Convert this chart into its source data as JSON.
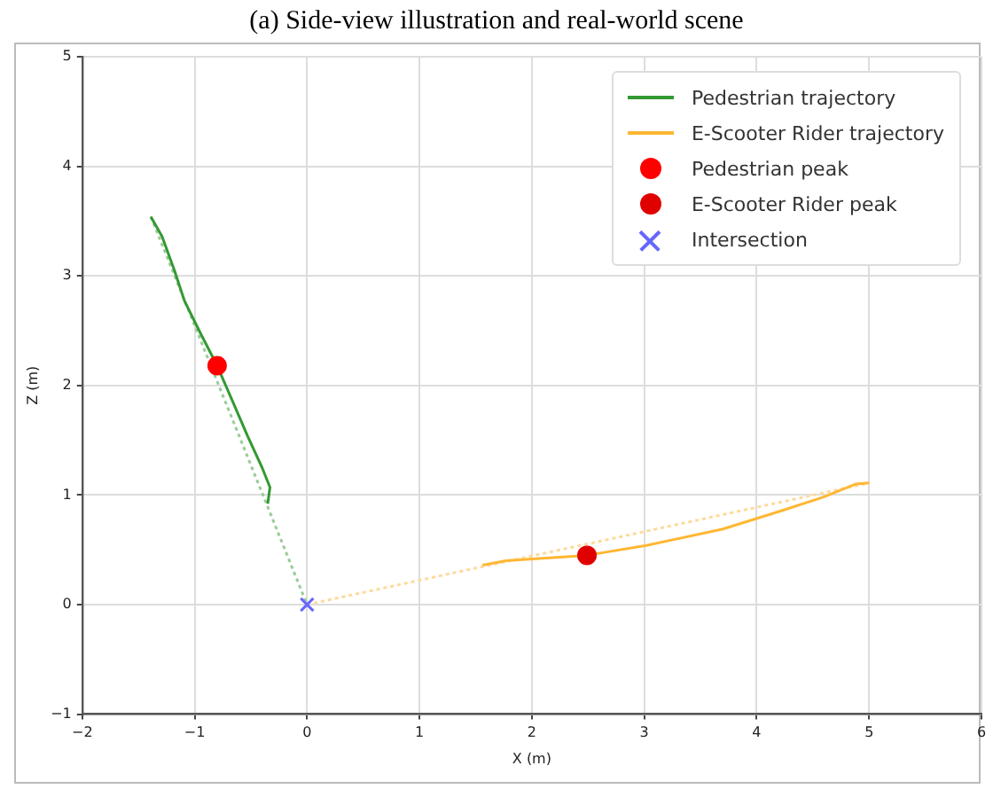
{
  "chart_data": {
    "type": "line",
    "title": "(a) Side-view illustration and real-world scene",
    "xlabel": "X (m)",
    "ylabel": "Z (m)",
    "xlim": [
      -2,
      6
    ],
    "xticks": [
      -2,
      -1,
      0,
      1,
      2,
      3,
      4,
      5,
      6
    ],
    "ylim": [
      -1,
      5
    ],
    "yticks": [
      -1,
      0,
      1,
      2,
      3,
      4,
      5
    ],
    "grid": true,
    "legend": "top right",
    "series": [
      {
        "name": "Pedestrian trajectory",
        "color": "#339933",
        "marker": "none",
        "x": [
          -1.39,
          -1.29,
          -1.18,
          -1.09,
          -0.95,
          -0.8,
          -0.66,
          -0.53,
          -0.4,
          -0.33,
          -0.35
        ],
        "values": [
          3.54,
          3.36,
          3.05,
          2.77,
          2.48,
          2.18,
          1.85,
          1.54,
          1.25,
          1.07,
          0.92
        ]
      },
      {
        "type": "line",
        "color": "#99cc99",
        "marker": "none",
        "line_style": "dotted",
        "x": [
          -1.39,
          0
        ],
        "values": [
          3.54,
          0
        ]
      },
      {
        "name": "E-Scooter Rider trajectory",
        "color": "#ffb733",
        "marker": "none",
        "x": [
          1.56,
          1.77,
          2.49,
          3.02,
          3.7,
          4.23,
          4.59,
          4.88,
          5.0
        ],
        "values": [
          0.36,
          0.4,
          0.45,
          0.54,
          0.69,
          0.86,
          0.98,
          1.1,
          1.11
        ]
      },
      {
        "type": "line",
        "color": "#ffd99a",
        "marker": "none",
        "line_style": "dotted",
        "x": [
          0,
          5.0
        ],
        "values": [
          0,
          1.11
        ]
      },
      {
        "name": "Pedestrian peak",
        "type": "scatter",
        "color": "#ff0000",
        "marker": "circle",
        "x": [
          -0.8
        ],
        "values": [
          2.18
        ]
      },
      {
        "name": "E-Scooter Rider peak",
        "type": "scatter",
        "color": "#e00000",
        "marker": "circle",
        "x": [
          2.49
        ],
        "values": [
          0.45
        ]
      },
      {
        "name": "Intersection",
        "type": "scatter",
        "color": "#6666ff",
        "marker": "cross",
        "x": [
          0
        ],
        "values": [
          0
        ]
      }
    ]
  }
}
